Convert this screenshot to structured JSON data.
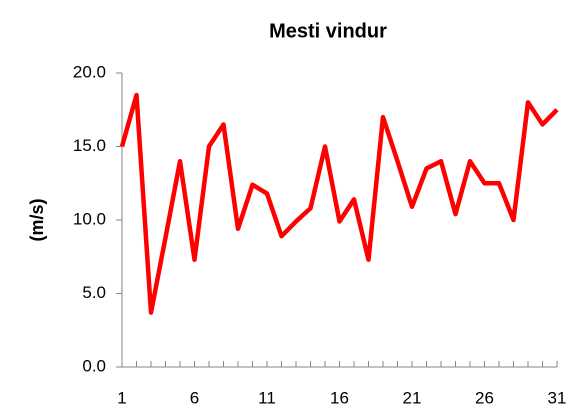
{
  "chart_data": {
    "type": "line",
    "title": "Mesti vindur",
    "ylabel": "(m/s)",
    "x": [
      1,
      2,
      3,
      4,
      5,
      6,
      7,
      8,
      9,
      10,
      11,
      12,
      13,
      14,
      15,
      16,
      17,
      18,
      19,
      20,
      21,
      22,
      23,
      24,
      25,
      26,
      27,
      28,
      29,
      30,
      31
    ],
    "series": [
      {
        "name": "Mesti vindur",
        "color": "#ff0000",
        "values": [
          15.0,
          18.5,
          3.7,
          8.8,
          14.0,
          7.3,
          15.0,
          16.5,
          9.4,
          12.4,
          11.8,
          8.9,
          9.9,
          10.8,
          15.0,
          9.9,
          11.4,
          7.3,
          17.0,
          14.0,
          10.9,
          13.5,
          14.0,
          10.4,
          14.0,
          12.5,
          12.5,
          10.0,
          18.0,
          16.5,
          17.5
        ]
      }
    ],
    "xlim": [
      1,
      31
    ],
    "xticks": [
      1,
      6,
      11,
      16,
      21,
      26,
      31
    ],
    "ylim": [
      0,
      20
    ],
    "yticks": [
      {
        "value": 0,
        "label": "0.0"
      },
      {
        "value": 5,
        "label": "5.0"
      },
      {
        "value": 10,
        "label": "10.0"
      },
      {
        "value": 15,
        "label": "15.0"
      },
      {
        "value": 20,
        "label": "20.0"
      }
    ],
    "grid": false
  }
}
